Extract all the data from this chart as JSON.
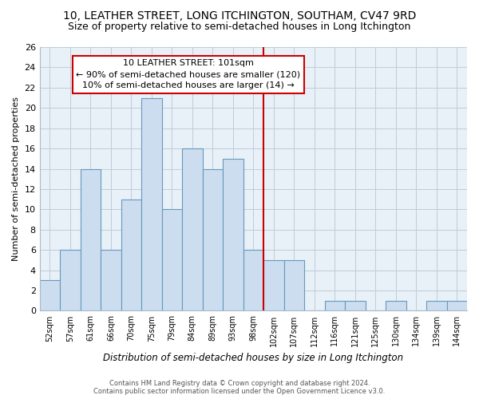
{
  "title": "10, LEATHER STREET, LONG ITCHINGTON, SOUTHAM, CV47 9RD",
  "subtitle": "Size of property relative to semi-detached houses in Long Itchington",
  "xlabel": "Distribution of semi-detached houses by size in Long Itchington",
  "ylabel": "Number of semi-detached properties",
  "bin_labels": [
    "52sqm",
    "57sqm",
    "61sqm",
    "66sqm",
    "70sqm",
    "75sqm",
    "79sqm",
    "84sqm",
    "89sqm",
    "93sqm",
    "98sqm",
    "102sqm",
    "107sqm",
    "112sqm",
    "116sqm",
    "121sqm",
    "125sqm",
    "130sqm",
    "134sqm",
    "139sqm",
    "144sqm"
  ],
  "bar_heights": [
    3,
    6,
    14,
    6,
    11,
    21,
    10,
    16,
    14,
    15,
    6,
    5,
    5,
    0,
    1,
    1,
    0,
    1,
    0,
    1,
    1
  ],
  "bar_color": "#ccddf0",
  "bar_edgecolor": "#6699bb",
  "property_line_bin": 11,
  "annotation_title": "10 LEATHER STREET: 101sqm",
  "annotation_line1": "← 90% of semi-detached houses are smaller (120)",
  "annotation_line2": "10% of semi-detached houses are larger (14) →",
  "annotation_box_edgecolor": "#cc0000",
  "vline_color": "#cc0000",
  "ylim": [
    0,
    26
  ],
  "yticks": [
    0,
    2,
    4,
    6,
    8,
    10,
    12,
    14,
    16,
    18,
    20,
    22,
    24,
    26
  ],
  "footer1": "Contains HM Land Registry data © Crown copyright and database right 2024.",
  "footer2": "Contains public sector information licensed under the Open Government Licence v3.0.",
  "bg_color": "#ffffff",
  "plot_bg_color": "#e8f0f8",
  "grid_color": "#c0ccd8",
  "title_fontsize": 10,
  "subtitle_fontsize": 9,
  "annotation_fontsize": 8
}
